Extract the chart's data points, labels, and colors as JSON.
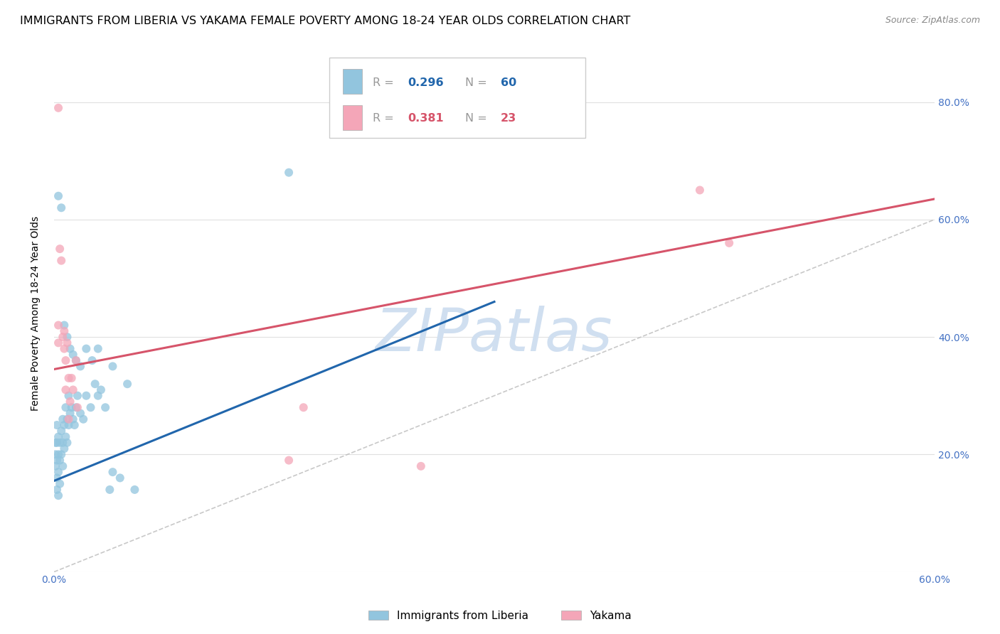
{
  "title": "IMMIGRANTS FROM LIBERIA VS YAKAMA FEMALE POVERTY AMONG 18-24 YEAR OLDS CORRELATION CHART",
  "source": "Source: ZipAtlas.com",
  "ylabel": "Female Poverty Among 18-24 Year Olds",
  "legend_label_blue": "Immigrants from Liberia",
  "legend_label_pink": "Yakama",
  "blue_color": "#92c5de",
  "pink_color": "#f4a6b8",
  "blue_line_color": "#2166ac",
  "pink_line_color": "#d6546a",
  "ref_line_color": "#bbbbbb",
  "axis_tick_color": "#4472c4",
  "grid_color": "#e0e0e0",
  "watermark_color": "#d0dff0",
  "xlim": [
    0.0,
    0.6
  ],
  "ylim": [
    0.0,
    0.88
  ],
  "ytick_values": [
    0.0,
    0.2,
    0.4,
    0.6,
    0.8
  ],
  "blue_trend_x": [
    0.0,
    0.3
  ],
  "blue_trend_y": [
    0.155,
    0.46
  ],
  "pink_trend_x": [
    0.0,
    0.6
  ],
  "pink_trend_y": [
    0.345,
    0.635
  ],
  "ref_line_x": [
    0.0,
    0.88
  ],
  "ref_line_y": [
    0.0,
    0.88
  ],
  "blue_points_x": [
    0.001,
    0.001,
    0.001,
    0.002,
    0.002,
    0.002,
    0.002,
    0.002,
    0.003,
    0.003,
    0.003,
    0.003,
    0.004,
    0.004,
    0.004,
    0.005,
    0.005,
    0.006,
    0.006,
    0.006,
    0.007,
    0.007,
    0.008,
    0.008,
    0.009,
    0.009,
    0.01,
    0.01,
    0.011,
    0.012,
    0.013,
    0.014,
    0.015,
    0.016,
    0.018,
    0.02,
    0.022,
    0.025,
    0.028,
    0.03,
    0.032,
    0.035,
    0.038,
    0.04,
    0.045,
    0.05,
    0.055,
    0.16,
    0.003,
    0.005,
    0.007,
    0.009,
    0.011,
    0.013,
    0.015,
    0.018,
    0.022,
    0.026,
    0.03,
    0.04
  ],
  "blue_points_y": [
    0.22,
    0.2,
    0.18,
    0.25,
    0.22,
    0.19,
    0.16,
    0.14,
    0.23,
    0.2,
    0.17,
    0.13,
    0.22,
    0.19,
    0.15,
    0.24,
    0.2,
    0.26,
    0.22,
    0.18,
    0.25,
    0.21,
    0.28,
    0.23,
    0.26,
    0.22,
    0.3,
    0.25,
    0.27,
    0.28,
    0.26,
    0.25,
    0.28,
    0.3,
    0.27,
    0.26,
    0.3,
    0.28,
    0.32,
    0.3,
    0.31,
    0.28,
    0.14,
    0.17,
    0.16,
    0.32,
    0.14,
    0.68,
    0.64,
    0.62,
    0.42,
    0.4,
    0.38,
    0.37,
    0.36,
    0.35,
    0.38,
    0.36,
    0.38,
    0.35
  ],
  "pink_points_x": [
    0.003,
    0.004,
    0.005,
    0.006,
    0.007,
    0.007,
    0.008,
    0.008,
    0.009,
    0.01,
    0.011,
    0.012,
    0.013,
    0.015,
    0.016,
    0.16,
    0.17,
    0.25,
    0.44,
    0.46,
    0.003,
    0.003,
    0.01
  ],
  "pink_points_y": [
    0.79,
    0.55,
    0.53,
    0.4,
    0.41,
    0.38,
    0.36,
    0.31,
    0.39,
    0.33,
    0.29,
    0.33,
    0.31,
    0.36,
    0.28,
    0.19,
    0.28,
    0.18,
    0.65,
    0.56,
    0.42,
    0.39,
    0.26
  ],
  "title_fontsize": 11.5,
  "source_fontsize": 9,
  "watermark_fontsize": 60,
  "axis_fontsize": 10
}
